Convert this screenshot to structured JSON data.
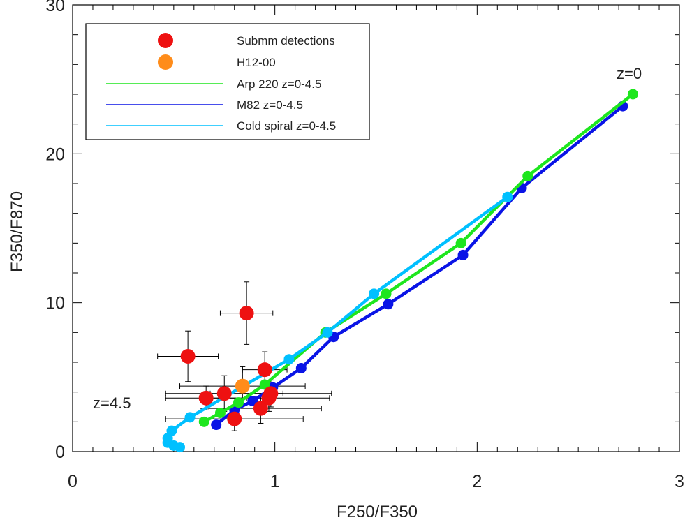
{
  "chart_data": {
    "type": "scatter",
    "xlabel": "F250/F350",
    "ylabel": "F350/F870",
    "xlim": [
      0,
      3
    ],
    "ylim": [
      0,
      30
    ],
    "xticks": [
      0,
      1,
      2,
      3
    ],
    "xtick_labels": [
      "0",
      "1",
      "2",
      "3"
    ],
    "yticks": [
      0,
      10,
      20,
      30
    ],
    "ytick_labels": [
      "0",
      "10",
      "20",
      "30"
    ],
    "grid": false,
    "legend_position": "top-left",
    "colors": {
      "detections": "#ee1111",
      "h12": "#ff8c1a",
      "arp220": "#1ee61e",
      "m82": "#0a14e6",
      "cold_spiral": "#00c0ff"
    },
    "legend": [
      {
        "key": "detections",
        "label": "Submm detections",
        "marker": "dot"
      },
      {
        "key": "h12",
        "label": "H12-00",
        "marker": "dot"
      },
      {
        "key": "arp220",
        "label": "Arp 220 z=0-4.5",
        "marker": "line"
      },
      {
        "key": "m82",
        "label": "M82 z=0-4.5",
        "marker": "line"
      },
      {
        "key": "cold_spiral",
        "label": "Cold spiral z=0-4.5",
        "marker": "line"
      }
    ],
    "annotations": [
      {
        "text": "z=0",
        "x": 2.72,
        "y": 25.2
      },
      {
        "text": "z=4.5",
        "x": 0.1,
        "y": 2.6
      }
    ],
    "series": [
      {
        "name": "Arp 220 z=0-4.5",
        "key": "arp220",
        "style": "line+markers",
        "x": [
          0.65,
          0.73,
          0.82,
          0.95,
          1.25,
          1.55,
          1.92,
          2.25,
          2.77
        ],
        "y": [
          2.0,
          2.6,
          3.3,
          4.5,
          8.0,
          10.6,
          14.0,
          18.5,
          24.0
        ]
      },
      {
        "name": "M82 z=0-4.5",
        "key": "m82",
        "style": "line+markers",
        "x": [
          0.71,
          0.8,
          0.89,
          0.99,
          1.13,
          1.29,
          1.56,
          1.93,
          2.22,
          2.72
        ],
        "y": [
          1.8,
          2.8,
          3.4,
          4.3,
          5.6,
          7.7,
          9.9,
          13.2,
          17.7,
          23.2
        ]
      },
      {
        "name": "Cold spiral z=0-4.5",
        "key": "cold_spiral",
        "style": "line+markers",
        "x": [
          0.53,
          0.5,
          0.47,
          0.47,
          0.49,
          0.58,
          1.07,
          1.26,
          1.49,
          2.15
        ],
        "y": [
          0.3,
          0.4,
          0.6,
          0.9,
          1.4,
          2.3,
          6.2,
          8.0,
          10.6,
          17.1
        ]
      },
      {
        "name": "Submm detections",
        "key": "detections",
        "style": "markers+errorbars",
        "points": [
          {
            "x": 0.86,
            "y": 9.3,
            "xerr": 0.13,
            "yerr": 2.1
          },
          {
            "x": 0.57,
            "y": 6.4,
            "xerr": 0.15,
            "yerr": 1.7
          },
          {
            "x": 0.95,
            "y": 5.5,
            "xerr": 0.11,
            "yerr": 1.2
          },
          {
            "x": 0.66,
            "y": 3.6,
            "xerr": 0.2,
            "yerr": 0.8
          },
          {
            "x": 0.75,
            "y": 3.9,
            "xerr": 0.29,
            "yerr": 1.2
          },
          {
            "x": 0.8,
            "y": 2.2,
            "xerr": 0.34,
            "yerr": 0.8
          },
          {
            "x": 0.93,
            "y": 2.9,
            "xerr": 0.3,
            "yerr": 1.0
          },
          {
            "x": 0.97,
            "y": 3.6,
            "xerr": 0.3,
            "yerr": 0.9
          },
          {
            "x": 0.98,
            "y": 3.9,
            "xerr": 0.3,
            "yerr": 0.9
          }
        ]
      },
      {
        "name": "H12-00",
        "key": "h12",
        "style": "markers+errorbars",
        "points": [
          {
            "x": 0.84,
            "y": 4.4,
            "xerr": 0.31,
            "yerr": 1.3
          }
        ]
      }
    ]
  }
}
